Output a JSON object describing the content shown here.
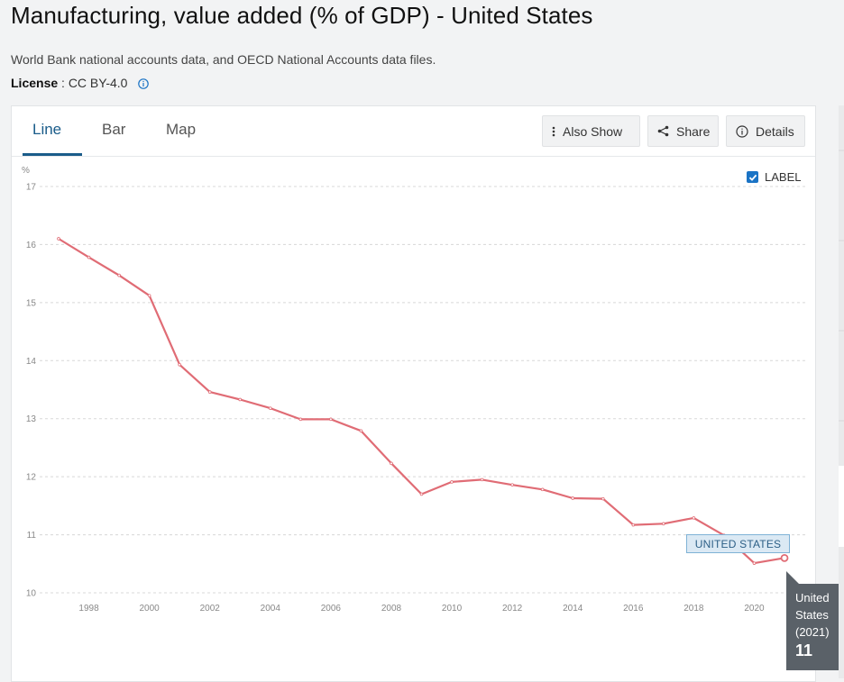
{
  "page": {
    "title": "Manufacturing, value added (% of GDP) - United States",
    "subtitle": "World Bank national accounts data, and OECD National Accounts data files.",
    "license_label": "License",
    "license_sep": " : ",
    "license_value": "CC BY-4.0"
  },
  "tabs": [
    {
      "label": "Line",
      "active": true
    },
    {
      "label": "Bar",
      "active": false
    },
    {
      "label": "Map",
      "active": false
    }
  ],
  "toolbar": {
    "also_show": "Also Show",
    "share": "Share",
    "details": "Details"
  },
  "label_toggle": {
    "label": "LABEL",
    "checked": true
  },
  "series_tag": "UNITED STATES",
  "tooltip": {
    "line1": "United",
    "line2": "States",
    "line3": "(2021)",
    "value": "11"
  },
  "colors": {
    "accent": "#1a5c8a",
    "series": "#e06c75",
    "checkbox": "#1a73c5"
  },
  "chart_data": {
    "type": "line",
    "ylabel": "%",
    "ylim": [
      10,
      17
    ],
    "yticks": [
      10,
      11,
      12,
      13,
      14,
      15,
      16,
      17
    ],
    "xlim": [
      1997,
      2021
    ],
    "xticks": [
      1998,
      2000,
      2002,
      2004,
      2006,
      2008,
      2010,
      2012,
      2014,
      2016,
      2018,
      2020
    ],
    "grid": true,
    "series": [
      {
        "name": "United States",
        "x": [
          1997,
          1998,
          1999,
          2000,
          2001,
          2002,
          2003,
          2004,
          2005,
          2006,
          2007,
          2008,
          2009,
          2010,
          2011,
          2012,
          2013,
          2014,
          2015,
          2016,
          2017,
          2018,
          2019,
          2020,
          2021
        ],
        "y": [
          16.1,
          15.78,
          15.47,
          15.12,
          13.93,
          13.46,
          13.33,
          13.18,
          12.99,
          12.99,
          12.79,
          12.23,
          11.7,
          11.91,
          11.95,
          11.86,
          11.78,
          11.63,
          11.62,
          11.17,
          11.19,
          11.29,
          10.99,
          10.51,
          10.6
        ]
      }
    ]
  }
}
